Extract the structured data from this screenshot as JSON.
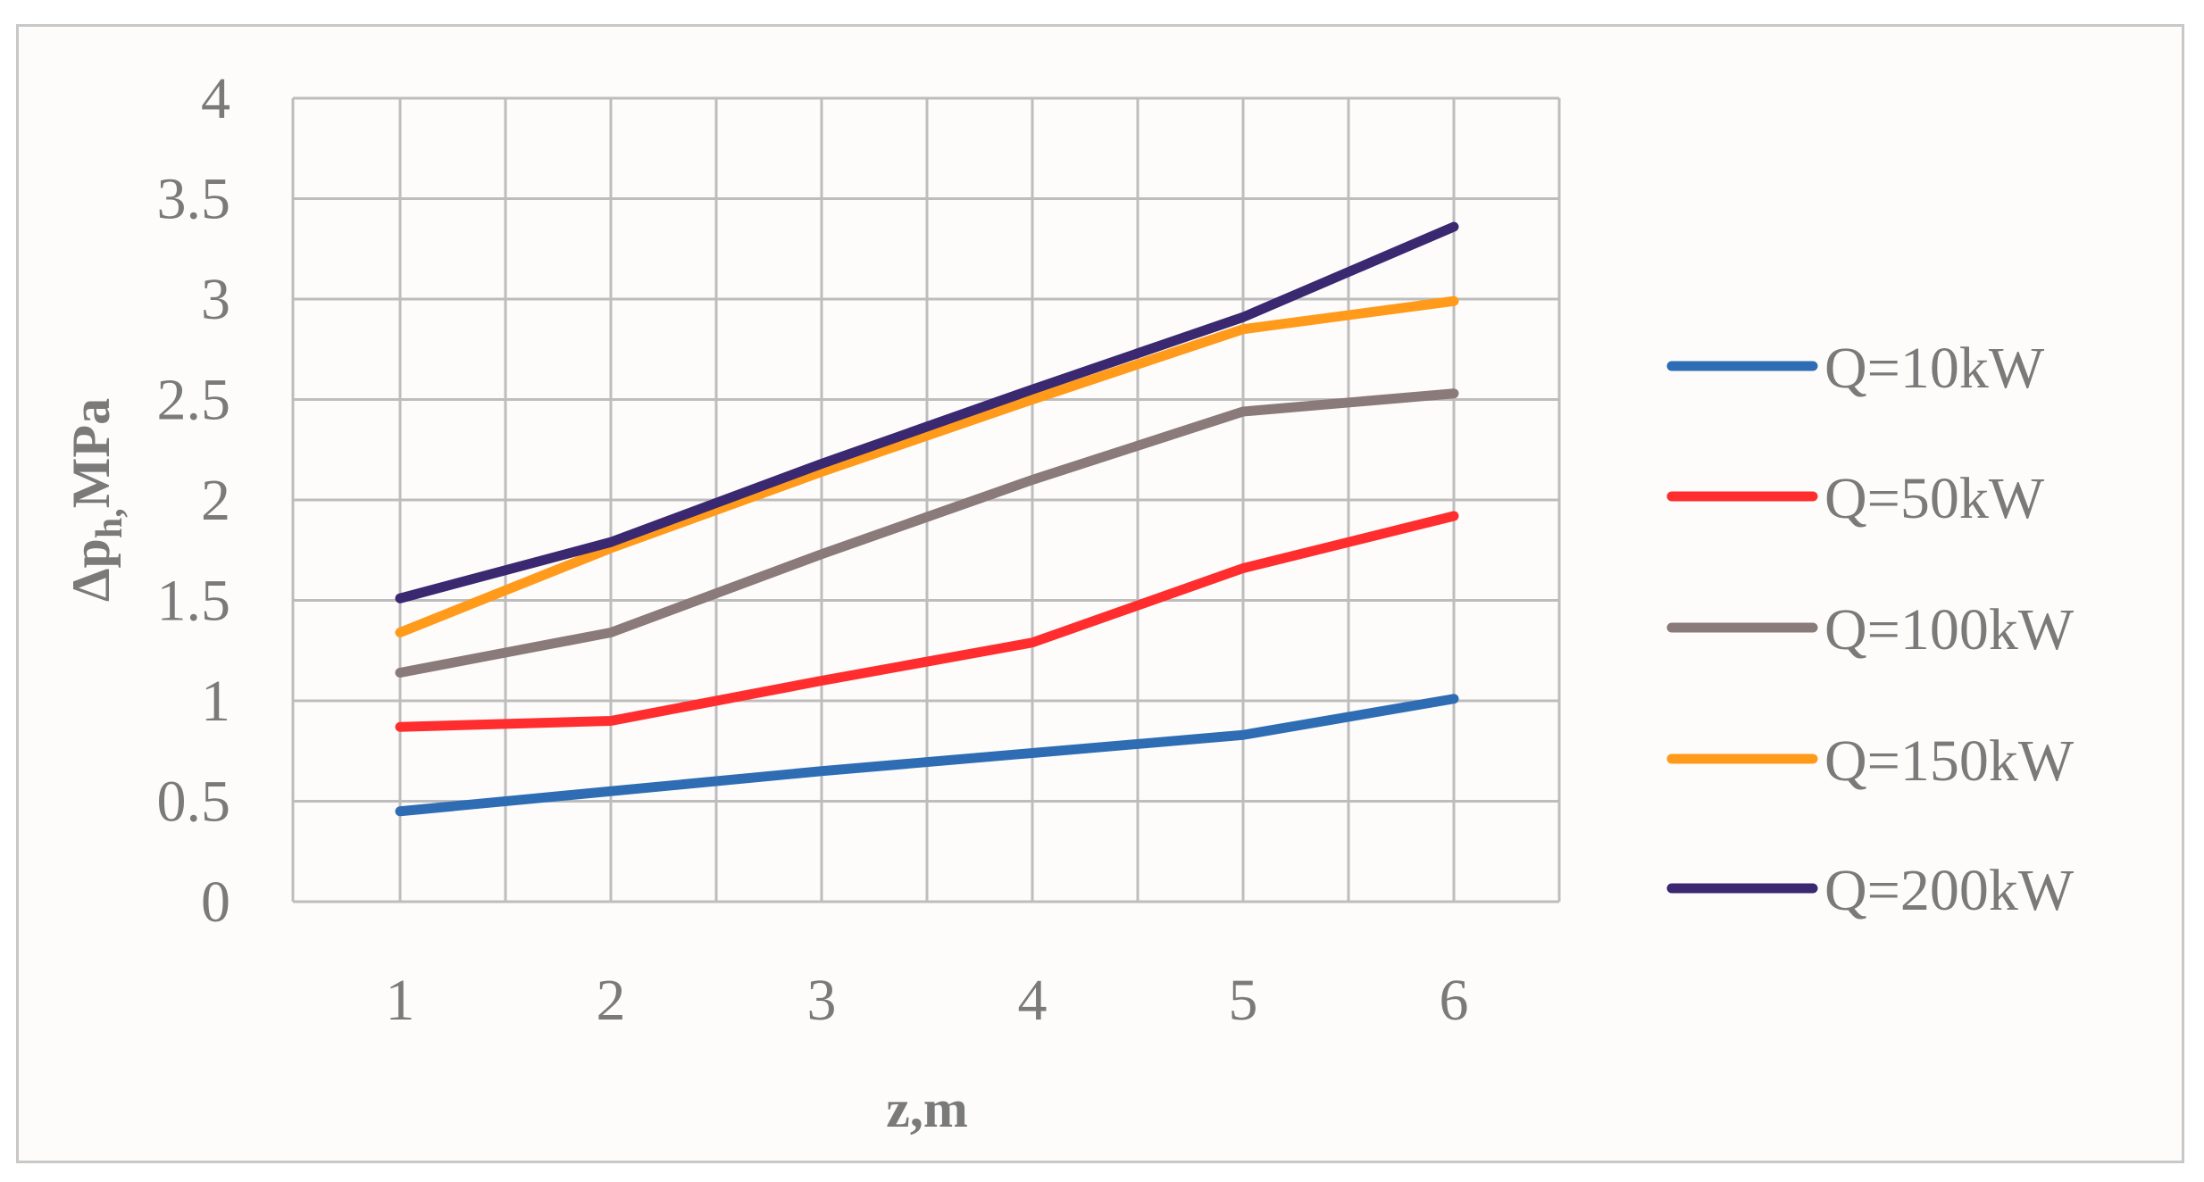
{
  "chart_data": {
    "type": "line",
    "xlabel": "z,m",
    "ylabel": "Δp",
    "ylabel_sub": "h,",
    "ylabel_unit": "MPa",
    "categories": [
      "1",
      "2",
      "3",
      "4",
      "5",
      "6"
    ],
    "x": [
      1,
      2,
      3,
      4,
      5,
      6
    ],
    "ylim": [
      0,
      4
    ],
    "yticks": [
      "0",
      "0.5",
      "1",
      "1.5",
      "2",
      "2.5",
      "3",
      "3.5",
      "4"
    ],
    "grid": true,
    "legend_position": "right",
    "series": [
      {
        "name": "Q=10kW",
        "color": "#2e6db4",
        "values": [
          0.45,
          0.55,
          0.65,
          0.74,
          0.83,
          1.01
        ]
      },
      {
        "name": "Q=50kW",
        "color": "#ff2d2d",
        "values": [
          0.87,
          0.9,
          1.1,
          1.29,
          1.66,
          1.92
        ]
      },
      {
        "name": "Q=100kW",
        "color": "#8a7a7a",
        "values": [
          1.14,
          1.34,
          1.73,
          2.1,
          2.44,
          2.53
        ]
      },
      {
        "name": "Q=150kW",
        "color": "#ff9a1a",
        "values": [
          1.34,
          1.76,
          2.14,
          2.5,
          2.85,
          2.99
        ]
      },
      {
        "name": "Q=200kW",
        "color": "#3a2870",
        "values": [
          1.51,
          1.79,
          2.18,
          2.55,
          2.91,
          3.36
        ]
      }
    ]
  }
}
